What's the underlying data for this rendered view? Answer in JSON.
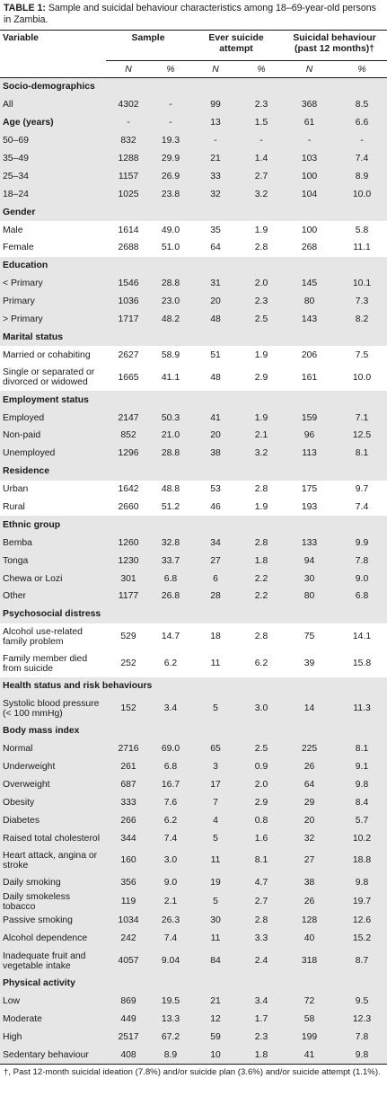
{
  "caption": {
    "label": "TABLE 1:",
    "text": " Sample and suicidal behaviour characteristics among 18–69-year-old persons in Zambia."
  },
  "header": {
    "variable": "Variable",
    "groups": [
      "Sample",
      "Ever suicide attempt",
      "Suicidal behaviour (past 12 months)†"
    ],
    "sub": [
      "N",
      "%",
      "N",
      "%",
      "N",
      "%"
    ]
  },
  "rows": [
    {
      "label": "Socio-demographics",
      "section": true,
      "cells": []
    },
    {
      "label": "All",
      "shade": true,
      "cells": [
        "4302",
        "-",
        "99",
        "2.3",
        "368",
        "8.5"
      ]
    },
    {
      "label": "Age (years)",
      "shade": true,
      "bold": true,
      "cells": [
        "-",
        "-",
        "13",
        "1.5",
        "61",
        "6.6"
      ]
    },
    {
      "label": "50–69",
      "shade": true,
      "cells": [
        "832",
        "19.3",
        "-",
        "-",
        "-",
        "-"
      ]
    },
    {
      "label": "35–49",
      "shade": true,
      "cells": [
        "1288",
        "29.9",
        "21",
        "1.4",
        "103",
        "7.4"
      ]
    },
    {
      "label": "25–34",
      "shade": true,
      "cells": [
        "1157",
        "26.9",
        "33",
        "2.7",
        "100",
        "8.9"
      ]
    },
    {
      "label": "18–24",
      "shade": true,
      "cells": [
        "1025",
        "23.8",
        "32",
        "3.2",
        "104",
        "10.0"
      ]
    },
    {
      "label": "Gender",
      "section": true,
      "cells": []
    },
    {
      "label": "Male",
      "cells": [
        "1614",
        "49.0",
        "35",
        "1.9",
        "100",
        "5.8"
      ]
    },
    {
      "label": "Female",
      "cells": [
        "2688",
        "51.0",
        "64",
        "2.8",
        "268",
        "11.1"
      ]
    },
    {
      "label": "Education",
      "section": true,
      "cells": []
    },
    {
      "label": "< Primary",
      "shade": true,
      "cells": [
        "1546",
        "28.8",
        "31",
        "2.0",
        "145",
        "10.1"
      ]
    },
    {
      "label": "Primary",
      "shade": true,
      "cells": [
        "1036",
        "23.0",
        "20",
        "2.3",
        "80",
        "7.3"
      ]
    },
    {
      "label": "> Primary",
      "shade": true,
      "cells": [
        "1717",
        "48.2",
        "48",
        "2.5",
        "143",
        "8.2"
      ]
    },
    {
      "label": "Marital status",
      "section": true,
      "cells": []
    },
    {
      "label": "Married or cohabiting",
      "cells": [
        "2627",
        "58.9",
        "51",
        "1.9",
        "206",
        "7.5"
      ]
    },
    {
      "label": "Single or separated or divorced or widowed",
      "tall": true,
      "cells": [
        "1665",
        "41.1",
        "48",
        "2.9",
        "161",
        "10.0"
      ]
    },
    {
      "label": "Employment status",
      "section": true,
      "cells": []
    },
    {
      "label": "Employed",
      "shade": true,
      "cells": [
        "2147",
        "50.3",
        "41",
        "1.9",
        "159",
        "7.1"
      ]
    },
    {
      "label": "Non-paid",
      "shade": true,
      "cells": [
        "852",
        "21.0",
        "20",
        "2.1",
        "96",
        "12.5"
      ]
    },
    {
      "label": "Unemployed",
      "shade": true,
      "cells": [
        "1296",
        "28.8",
        "38",
        "3.2",
        "113",
        "8.1"
      ]
    },
    {
      "label": "Residence",
      "section": true,
      "cells": []
    },
    {
      "label": "Urban",
      "cells": [
        "1642",
        "48.8",
        "53",
        "2.8",
        "175",
        "9.7"
      ]
    },
    {
      "label": "Rural",
      "cells": [
        "2660",
        "51.2",
        "46",
        "1.9",
        "193",
        "7.4"
      ]
    },
    {
      "label": "Ethnic group",
      "section": true,
      "cells": []
    },
    {
      "label": "Bemba",
      "shade": true,
      "cells": [
        "1260",
        "32.8",
        "34",
        "2.8",
        "133",
        "9.9"
      ]
    },
    {
      "label": "Tonga",
      "shade": true,
      "cells": [
        "1230",
        "33.7",
        "27",
        "1.8",
        "94",
        "7.8"
      ]
    },
    {
      "label": "Chewa or Lozi",
      "shade": true,
      "cells": [
        "301",
        "6.8",
        "6",
        "2.2",
        "30",
        "9.0"
      ]
    },
    {
      "label": "Other",
      "shade": true,
      "cells": [
        "1177",
        "26.8",
        "28",
        "2.2",
        "80",
        "6.8"
      ]
    },
    {
      "label": "Psychosocial distress",
      "section": true,
      "cells": []
    },
    {
      "label": "Alcohol use-related family problem",
      "tall": true,
      "cells": [
        "529",
        "14.7",
        "18",
        "2.8",
        "75",
        "14.1"
      ]
    },
    {
      "label": "Family member died from suicide",
      "tall": true,
      "cells": [
        "252",
        "6.2",
        "11",
        "6.2",
        "39",
        "15.8"
      ]
    },
    {
      "label": "Health status and risk behaviours",
      "section": true,
      "cells": []
    },
    {
      "label": "Systolic blood pressure (< 100 mmHg)",
      "shade": true,
      "tall": true,
      "cells": [
        "152",
        "3.4",
        "5",
        "3.0",
        "14",
        "11.3"
      ]
    },
    {
      "label": "Body mass index",
      "section": true,
      "cells": []
    },
    {
      "label": "Normal",
      "shade": true,
      "cells": [
        "2716",
        "69.0",
        "65",
        "2.5",
        "225",
        "8.1"
      ]
    },
    {
      "label": "Underweight",
      "shade": true,
      "cells": [
        "261",
        "6.8",
        "3",
        "0.9",
        "26",
        "9.1"
      ]
    },
    {
      "label": "Overweight",
      "shade": true,
      "cells": [
        "687",
        "16.7",
        "17",
        "2.0",
        "64",
        "9.8"
      ]
    },
    {
      "label": "Obesity",
      "shade": true,
      "cells": [
        "333",
        "7.6",
        "7",
        "2.9",
        "29",
        "8.4"
      ]
    },
    {
      "label": "Diabetes",
      "shade": true,
      "cells": [
        "266",
        "6.2",
        "4",
        "0.8",
        "20",
        "5.7"
      ]
    },
    {
      "label": "Raised total cholesterol",
      "shade": true,
      "cells": [
        "344",
        "7.4",
        "5",
        "1.6",
        "32",
        "10.2"
      ]
    },
    {
      "label": "Heart attack, angina or stroke",
      "shade": true,
      "tall": true,
      "cells": [
        "160",
        "3.0",
        "11",
        "8.1",
        "27",
        "18.8"
      ]
    },
    {
      "label": "Daily smoking",
      "shade": true,
      "cells": [
        "356",
        "9.0",
        "19",
        "4.7",
        "38",
        "9.8"
      ]
    },
    {
      "label": "Daily smokeless tobacco",
      "shade": true,
      "cells": [
        "119",
        "2.1",
        "5",
        "2.7",
        "26",
        "19.7"
      ]
    },
    {
      "label": "Passive smoking",
      "shade": true,
      "cells": [
        "1034",
        "26.3",
        "30",
        "2.8",
        "128",
        "12.6"
      ]
    },
    {
      "label": "Alcohol dependence",
      "shade": true,
      "cells": [
        "242",
        "7.4",
        "11",
        "3.3",
        "40",
        "15.2"
      ]
    },
    {
      "label": "Inadequate fruit and vegetable intake",
      "shade": true,
      "tall": true,
      "cells": [
        "4057",
        "9.04",
        "84",
        "2.4",
        "318",
        "8.7"
      ]
    },
    {
      "label": "Physical activity",
      "section": true,
      "cells": []
    },
    {
      "label": "Low",
      "shade": true,
      "cells": [
        "869",
        "19.5",
        "21",
        "3.4",
        "72",
        "9.5"
      ]
    },
    {
      "label": "Moderate",
      "shade": true,
      "cells": [
        "449",
        "13.3",
        "12",
        "1.7",
        "58",
        "12.3"
      ]
    },
    {
      "label": "High",
      "shade": true,
      "cells": [
        "2517",
        "67.2",
        "59",
        "2.3",
        "199",
        "7.8"
      ]
    },
    {
      "label": "Sedentary behaviour",
      "shade": true,
      "cells": [
        "408",
        "8.9",
        "10",
        "1.8",
        "41",
        "9.8"
      ]
    }
  ],
  "footnote": "†, Past 12-month suicidal ideation (7.8%) and/or suicide plan (3.6%) and/or suicide attempt (1.1%)."
}
